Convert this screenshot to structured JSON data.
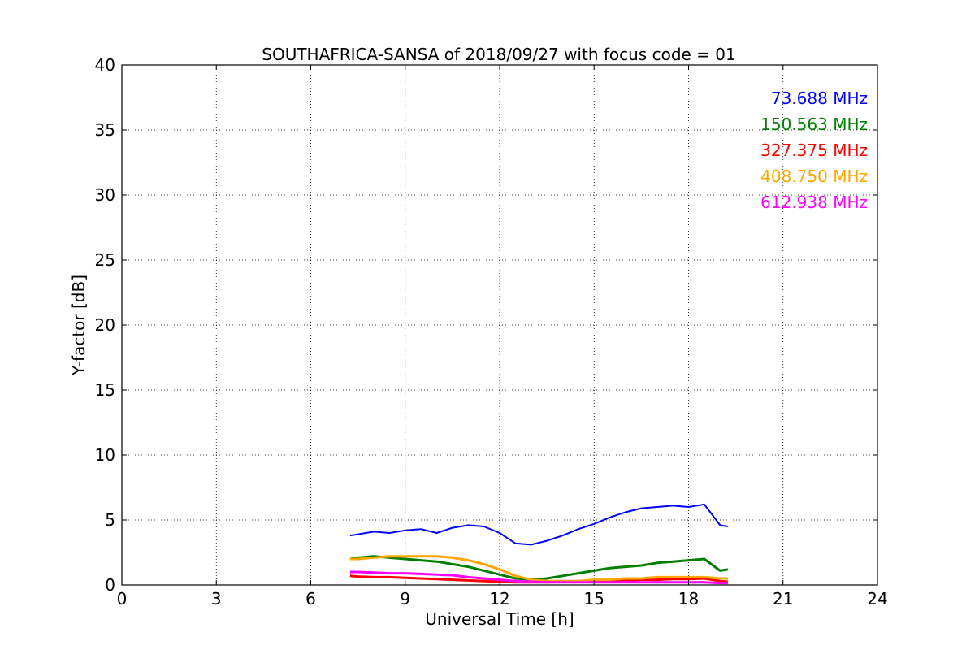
{
  "chart_data": {
    "type": "line",
    "title": "SOUTHAFRICA-SANSA of 2018/09/27 with focus code = 01",
    "xlabel": "Universal Time [h]",
    "ylabel": "Y-factor [dB]",
    "xlim": [
      0,
      24
    ],
    "ylim": [
      0,
      40
    ],
    "xticks": [
      0,
      3,
      6,
      9,
      12,
      15,
      18,
      21,
      24
    ],
    "yticks": [
      0,
      5,
      10,
      15,
      20,
      25,
      30,
      35,
      40
    ],
    "xtick_labels": [
      "0",
      "3",
      "6",
      "9",
      "12",
      "15",
      "18",
      "21",
      "24"
    ],
    "ytick_labels": [
      "0",
      "5",
      "10",
      "15",
      "20",
      "25",
      "30",
      "35",
      "40"
    ],
    "grid": true,
    "legend_position": "top-right",
    "series": [
      {
        "name": "73.688 MHz",
        "color": "#0000ff",
        "x": [
          7.25,
          7.5,
          8,
          8.5,
          9,
          9.5,
          10,
          10.5,
          11,
          11.5,
          12,
          12.5,
          13,
          13.5,
          14,
          14.5,
          15,
          15.5,
          16,
          16.5,
          17,
          17.5,
          18,
          18.5,
          19,
          19.25
        ],
        "y": [
          3.8,
          3.9,
          4.1,
          4.0,
          4.2,
          4.3,
          4.0,
          4.4,
          4.6,
          4.5,
          4.0,
          3.2,
          3.1,
          3.4,
          3.8,
          4.3,
          4.7,
          5.2,
          5.6,
          5.9,
          6.0,
          6.1,
          6.0,
          6.2,
          4.6,
          4.5
        ]
      },
      {
        "name": "150.563 MHz",
        "color": "#008000",
        "x": [
          7.25,
          7.5,
          8,
          8.5,
          9,
          9.5,
          10,
          10.5,
          11,
          11.5,
          12,
          12.5,
          13,
          13.5,
          14,
          14.5,
          15,
          15.5,
          16,
          16.5,
          17,
          17.5,
          18,
          18.5,
          19,
          19.25
        ],
        "y": [
          2.0,
          2.1,
          2.2,
          2.1,
          2.0,
          1.9,
          1.8,
          1.6,
          1.4,
          1.1,
          0.8,
          0.5,
          0.4,
          0.5,
          0.7,
          0.9,
          1.1,
          1.3,
          1.4,
          1.5,
          1.7,
          1.8,
          1.9,
          2.0,
          1.1,
          1.2
        ]
      },
      {
        "name": "327.375 MHz",
        "color": "#ff0000",
        "x": [
          7.25,
          7.5,
          8,
          8.5,
          9,
          9.5,
          10,
          10.5,
          11,
          11.5,
          12,
          12.5,
          13,
          13.5,
          14,
          14.5,
          15,
          15.5,
          16,
          16.5,
          17,
          17.5,
          18,
          18.5,
          19,
          19.25
        ],
        "y": [
          0.7,
          0.65,
          0.6,
          0.6,
          0.55,
          0.5,
          0.45,
          0.4,
          0.35,
          0.3,
          0.25,
          0.2,
          0.2,
          0.2,
          0.25,
          0.3,
          0.3,
          0.35,
          0.35,
          0.4,
          0.4,
          0.45,
          0.45,
          0.5,
          0.3,
          0.25
        ]
      },
      {
        "name": "408.750 MHz",
        "color": "#ffa500",
        "x": [
          7.25,
          7.5,
          8,
          8.5,
          9,
          9.5,
          10,
          10.5,
          11,
          11.5,
          12,
          12.5,
          13,
          13.5,
          14,
          14.5,
          15,
          15.5,
          16,
          16.5,
          17,
          17.5,
          18,
          18.5,
          19,
          19.25
        ],
        "y": [
          2.0,
          2.0,
          2.1,
          2.2,
          2.2,
          2.2,
          2.2,
          2.1,
          1.9,
          1.6,
          1.2,
          0.7,
          0.4,
          0.3,
          0.3,
          0.3,
          0.4,
          0.4,
          0.5,
          0.5,
          0.6,
          0.6,
          0.6,
          0.6,
          0.5,
          0.5
        ]
      },
      {
        "name": "612.938 MHz",
        "color": "#ff00ff",
        "x": [
          7.25,
          7.5,
          8,
          8.5,
          9,
          9.5,
          10,
          10.5,
          11,
          11.5,
          12,
          12.5,
          13,
          13.5,
          14,
          14.5,
          15,
          15.5,
          16,
          16.5,
          17,
          17.5,
          18,
          18.5,
          19,
          19.25
        ],
        "y": [
          1.0,
          1.0,
          0.95,
          0.9,
          0.9,
          0.85,
          0.8,
          0.75,
          0.6,
          0.5,
          0.4,
          0.3,
          0.25,
          0.2,
          0.2,
          0.2,
          0.2,
          0.2,
          0.2,
          0.2,
          0.2,
          0.2,
          0.2,
          0.2,
          0.15,
          0.15
        ]
      }
    ]
  }
}
